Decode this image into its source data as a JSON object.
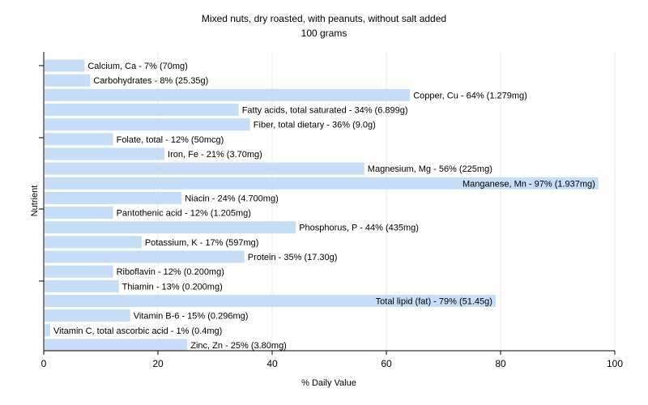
{
  "chart_data": {
    "type": "bar",
    "orientation": "horizontal",
    "title": "Mixed nuts, dry roasted, with peanuts, without salt added",
    "subtitle": "100 grams",
    "xlabel": "% Daily Value",
    "ylabel": "Nutrient",
    "xlim": [
      0,
      100
    ],
    "xticks": [
      "0",
      "20",
      "40",
      "60",
      "80",
      "100"
    ],
    "grid": true,
    "bar_color": "#c6ddf8",
    "categories": [
      "Calcium, Ca",
      "Carbohydrates",
      "Copper, Cu",
      "Fatty acids, total saturated",
      "Fiber, total dietary",
      "Folate, total",
      "Iron, Fe",
      "Magnesium, Mg",
      "Manganese, Mn",
      "Niacin",
      "Pantothenic acid",
      "Phosphorus, P",
      "Potassium, K",
      "Protein",
      "Riboflavin",
      "Thiamin",
      "Total lipid (fat)",
      "Vitamin B-6",
      "Vitamin C, total ascorbic acid",
      "Zinc, Zn"
    ],
    "values": [
      7,
      8,
      64,
      34,
      36,
      12,
      21,
      56,
      97,
      24,
      12,
      44,
      17,
      35,
      12,
      13,
      79,
      15,
      1,
      25
    ],
    "labels": [
      "Calcium, Ca - 7% (70mg)",
      "Carbohydrates - 8% (25.35g)",
      "Copper, Cu - 64% (1.279mg)",
      "Fatty acids, total saturated - 34% (6.899g)",
      "Fiber, total dietary - 36% (9.0g)",
      "Folate, total - 12% (50mcg)",
      "Iron, Fe - 21% (3.70mg)",
      "Magnesium, Mg - 56% (225mg)",
      "Manganese, Mn - 97% (1.937mg)",
      "Niacin - 24% (4.700mg)",
      "Pantothenic acid - 12% (1.205mg)",
      "Phosphorus, P - 44% (435mg)",
      "Potassium, K - 17% (597mg)",
      "Protein - 35% (17.30g)",
      "Riboflavin - 12% (0.200mg)",
      "Thiamin - 13% (0.200mg)",
      "Total lipid (fat) - 79% (51.45g)",
      "Vitamin B-6 - 15% (0.296mg)",
      "Vitamin C, total ascorbic acid - 1% (0.4mg)",
      "Zinc, Zn - 25% (3.80mg)"
    ]
  }
}
